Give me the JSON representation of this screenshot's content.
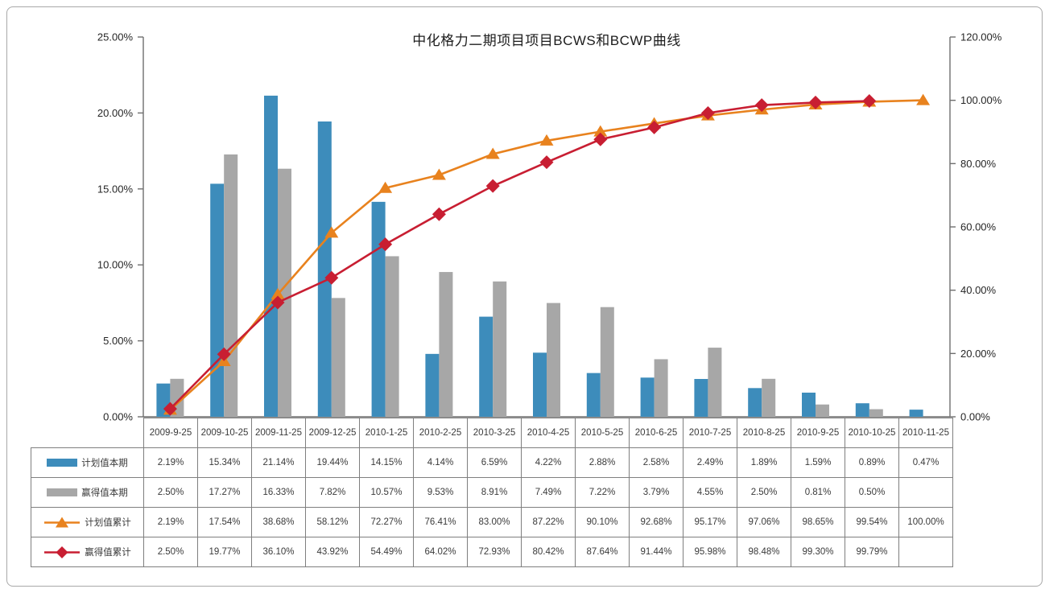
{
  "chart_data": {
    "type": "bar+line-combo",
    "title": "中化格力二期项目项目BCWS和BCWP曲线",
    "categories": [
      "2009-9-25",
      "2009-10-25",
      "2009-11-25",
      "2009-12-25",
      "2010-1-25",
      "2010-2-25",
      "2010-3-25",
      "2010-4-25",
      "2010-5-25",
      "2010-6-25",
      "2010-7-25",
      "2010-8-25",
      "2010-9-25",
      "2010-10-25",
      "2010-11-25"
    ],
    "left_axis": {
      "ticks": [
        "0.00%",
        "5.00%",
        "10.00%",
        "15.00%",
        "20.00%",
        "25.00%"
      ],
      "min": 0,
      "max": 25
    },
    "right_axis": {
      "ticks": [
        "0.00%",
        "20.00%",
        "40.00%",
        "60.00%",
        "80.00%",
        "100.00%",
        "120.00%"
      ],
      "min": 0,
      "max": 120
    },
    "grid": "off",
    "legend_position": "table-left-column",
    "series": [
      {
        "name": "计划值本期",
        "type": "bar",
        "axis": "left",
        "color": "#3d8cbb",
        "values": [
          2.19,
          15.34,
          21.14,
          19.44,
          14.15,
          4.14,
          6.59,
          4.22,
          2.88,
          2.58,
          2.49,
          1.89,
          1.59,
          0.89,
          0.47
        ],
        "display": [
          "2.19%",
          "15.34%",
          "21.14%",
          "19.44%",
          "14.15%",
          "4.14%",
          "6.59%",
          "4.22%",
          "2.88%",
          "2.58%",
          "2.49%",
          "1.89%",
          "1.59%",
          "0.89%",
          "0.47%"
        ]
      },
      {
        "name": "赢得值本期",
        "type": "bar",
        "axis": "left",
        "color": "#a7a7a7",
        "values": [
          2.5,
          17.27,
          16.33,
          7.82,
          10.57,
          9.53,
          8.91,
          7.49,
          7.22,
          3.79,
          4.55,
          2.5,
          0.81,
          0.5,
          null
        ],
        "display": [
          "2.50%",
          "17.27%",
          "16.33%",
          "7.82%",
          "10.57%",
          "9.53%",
          "8.91%",
          "7.49%",
          "7.22%",
          "3.79%",
          "4.55%",
          "2.50%",
          "0.81%",
          "0.50%",
          ""
        ]
      },
      {
        "name": "计划值累计",
        "type": "line",
        "marker": "triangle",
        "axis": "right",
        "color": "#e8821e",
        "values": [
          2.19,
          17.54,
          38.68,
          58.12,
          72.27,
          76.41,
          83.0,
          87.22,
          90.1,
          92.68,
          95.17,
          97.06,
          98.65,
          99.54,
          100.0
        ],
        "display": [
          "2.19%",
          "17.54%",
          "38.68%",
          "58.12%",
          "72.27%",
          "76.41%",
          "83.00%",
          "87.22%",
          "90.10%",
          "92.68%",
          "95.17%",
          "97.06%",
          "98.65%",
          "99.54%",
          "100.00%"
        ]
      },
      {
        "name": "赢得值累计",
        "type": "line",
        "marker": "diamond",
        "axis": "right",
        "color": "#c81e32",
        "values": [
          2.5,
          19.77,
          36.1,
          43.92,
          54.49,
          64.02,
          72.93,
          80.42,
          87.64,
          91.44,
          95.98,
          98.48,
          99.3,
          99.79,
          null
        ],
        "display": [
          "2.50%",
          "19.77%",
          "36.10%",
          "43.92%",
          "54.49%",
          "64.02%",
          "72.93%",
          "80.42%",
          "87.64%",
          "91.44%",
          "95.98%",
          "98.48%",
          "99.30%",
          "99.79%",
          ""
        ]
      }
    ],
    "colors": {
      "planned_bar": "#3d8cbb",
      "earned_bar": "#a7a7a7",
      "planned_cum_line": "#e8821e",
      "earned_cum_line": "#c81e32",
      "axis": "#6e6e6e",
      "table_border": "#7f7f7f",
      "frame_border": "#a8a8a8"
    }
  }
}
